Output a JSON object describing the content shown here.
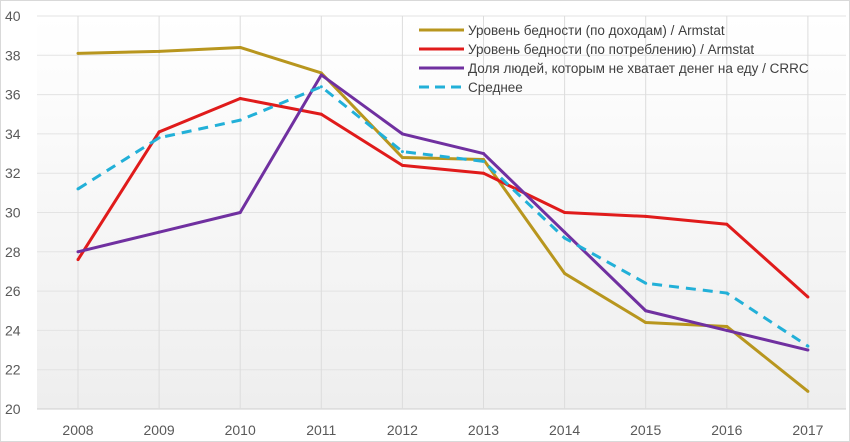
{
  "chart_data": {
    "type": "line",
    "title": "",
    "xlabel": "",
    "ylabel": "",
    "x": [
      "2008",
      "2009",
      "2010",
      "2011",
      "2012",
      "2013",
      "2014",
      "2015",
      "2016",
      "2017"
    ],
    "ylim": [
      20,
      40
    ],
    "yticks": [
      "20",
      "22",
      "24",
      "26",
      "28",
      "30",
      "32",
      "34",
      "36",
      "38",
      "40"
    ],
    "grid": true,
    "legend_position": "top-right",
    "series": [
      {
        "name": "Уровень бедности (по доходам) / Armstat",
        "color": "#b8961e",
        "dash": false,
        "values": [
          38.1,
          38.2,
          38.4,
          37.1,
          32.8,
          32.7,
          26.9,
          24.4,
          24.2,
          20.9
        ]
      },
      {
        "name": "Уровень бедности (по потреблению) / Armstat",
        "color": "#e01b1b",
        "dash": false,
        "values": [
          27.6,
          34.1,
          35.8,
          35.0,
          32.4,
          32.0,
          30.0,
          29.8,
          29.4,
          25.7
        ]
      },
      {
        "name": "Доля людей, которым не хватает денег на еду / CRRC",
        "color": "#7030a0",
        "dash": false,
        "values": [
          28.0,
          29.0,
          30.0,
          37.0,
          34.0,
          33.0,
          29.0,
          25.0,
          24.0,
          23.0
        ]
      },
      {
        "name": "Среднее",
        "color": "#22b0d8",
        "dash": true,
        "values": [
          31.2,
          33.8,
          34.7,
          36.4,
          33.1,
          32.6,
          28.7,
          26.4,
          25.9,
          23.2
        ]
      }
    ]
  }
}
